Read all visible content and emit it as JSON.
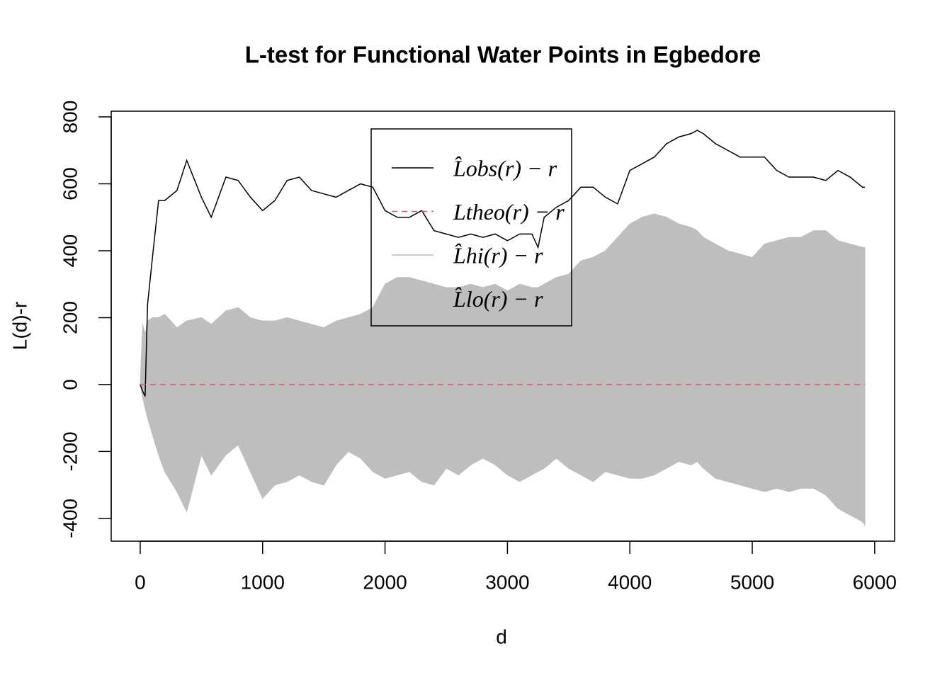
{
  "chart_data": {
    "type": "envelope-line",
    "title": "L-test for Functional Water Points in Egbedore",
    "x_label": "d",
    "y_label": "L(d)-r",
    "xlim": [
      -237,
      6163
    ],
    "ylim": [
      -468,
      817
    ],
    "xticks": [
      0,
      1000,
      2000,
      3000,
      4000,
      5000,
      6000
    ],
    "yticks": [
      -400,
      -200,
      0,
      200,
      400,
      600,
      800
    ],
    "x": [
      0,
      20,
      40,
      60,
      100,
      150,
      200,
      300,
      380,
      500,
      580,
      700,
      800,
      900,
      1000,
      1100,
      1200,
      1300,
      1400,
      1500,
      1600,
      1700,
      1800,
      1900,
      2000,
      2100,
      2200,
      2300,
      2400,
      2500,
      2600,
      2700,
      2800,
      2900,
      3000,
      3100,
      3200,
      3250,
      3300,
      3400,
      3500,
      3600,
      3700,
      3800,
      3900,
      4000,
      4100,
      4200,
      4300,
      4400,
      4500,
      4550,
      4600,
      4700,
      4800,
      4900,
      5000,
      5100,
      5200,
      5300,
      5400,
      5500,
      5600,
      5700,
      5800,
      5900,
      5920
    ],
    "series": [
      {
        "name": "L̂obs(r) − r",
        "color": "#000000",
        "style": "solid",
        "legend_line": true,
        "values": [
          0,
          -20,
          -35,
          240,
          380,
          550,
          550,
          580,
          670,
          560,
          500,
          620,
          610,
          560,
          520,
          550,
          610,
          620,
          580,
          570,
          560,
          580,
          600,
          590,
          520,
          500,
          500,
          520,
          460,
          450,
          440,
          450,
          440,
          450,
          430,
          450,
          450,
          410,
          500,
          530,
          550,
          590,
          590,
          560,
          540,
          640,
          660,
          680,
          720,
          740,
          750,
          760,
          750,
          720,
          700,
          680,
          680,
          680,
          640,
          620,
          620,
          620,
          610,
          640,
          620,
          590,
          590
        ]
      },
      {
        "name": "Ltheo(r) − r",
        "color": "#DF536B",
        "style": "dashed",
        "legend_line": true,
        "values": [
          0,
          0,
          0,
          0,
          0,
          0,
          0,
          0,
          0,
          0,
          0,
          0,
          0,
          0,
          0,
          0,
          0,
          0,
          0,
          0,
          0,
          0,
          0,
          0,
          0,
          0,
          0,
          0,
          0,
          0,
          0,
          0,
          0,
          0,
          0,
          0,
          0,
          0,
          0,
          0,
          0,
          0,
          0,
          0,
          0,
          0,
          0,
          0,
          0,
          0,
          0,
          0,
          0,
          0,
          0,
          0,
          0,
          0,
          0,
          0,
          0,
          0,
          0,
          0,
          0,
          0,
          0
        ]
      },
      {
        "name": "L̂hi(r) − r",
        "color": "#BEBEBE",
        "style": "area",
        "legend_line": true,
        "values": [
          0,
          180,
          150,
          190,
          200,
          200,
          210,
          170,
          190,
          200,
          180,
          220,
          230,
          200,
          190,
          190,
          200,
          190,
          180,
          170,
          190,
          200,
          210,
          230,
          300,
          320,
          320,
          310,
          300,
          290,
          290,
          300,
          290,
          300,
          280,
          300,
          290,
          290,
          300,
          320,
          330,
          370,
          380,
          400,
          440,
          480,
          500,
          510,
          500,
          480,
          470,
          460,
          440,
          420,
          400,
          390,
          380,
          420,
          430,
          440,
          440,
          460,
          460,
          430,
          420,
          410,
          410
        ]
      },
      {
        "name": "L̂lo(r) − r",
        "color": "#BEBEBE",
        "style": "area",
        "legend_line": false,
        "values": [
          0,
          -40,
          -70,
          -100,
          -150,
          -210,
          -260,
          -320,
          -380,
          -210,
          -270,
          -210,
          -180,
          -260,
          -340,
          -300,
          -290,
          -270,
          -290,
          -300,
          -240,
          -200,
          -220,
          -260,
          -280,
          -270,
          -260,
          -290,
          -300,
          -250,
          -270,
          -240,
          -220,
          -240,
          -270,
          -290,
          -270,
          -260,
          -250,
          -220,
          -250,
          -270,
          -290,
          -260,
          -270,
          -280,
          -280,
          -270,
          -250,
          -230,
          -240,
          -230,
          -250,
          -280,
          -290,
          -300,
          -310,
          -320,
          -310,
          -320,
          -310,
          -310,
          -330,
          -370,
          -390,
          -410,
          -420
        ]
      }
    ]
  }
}
